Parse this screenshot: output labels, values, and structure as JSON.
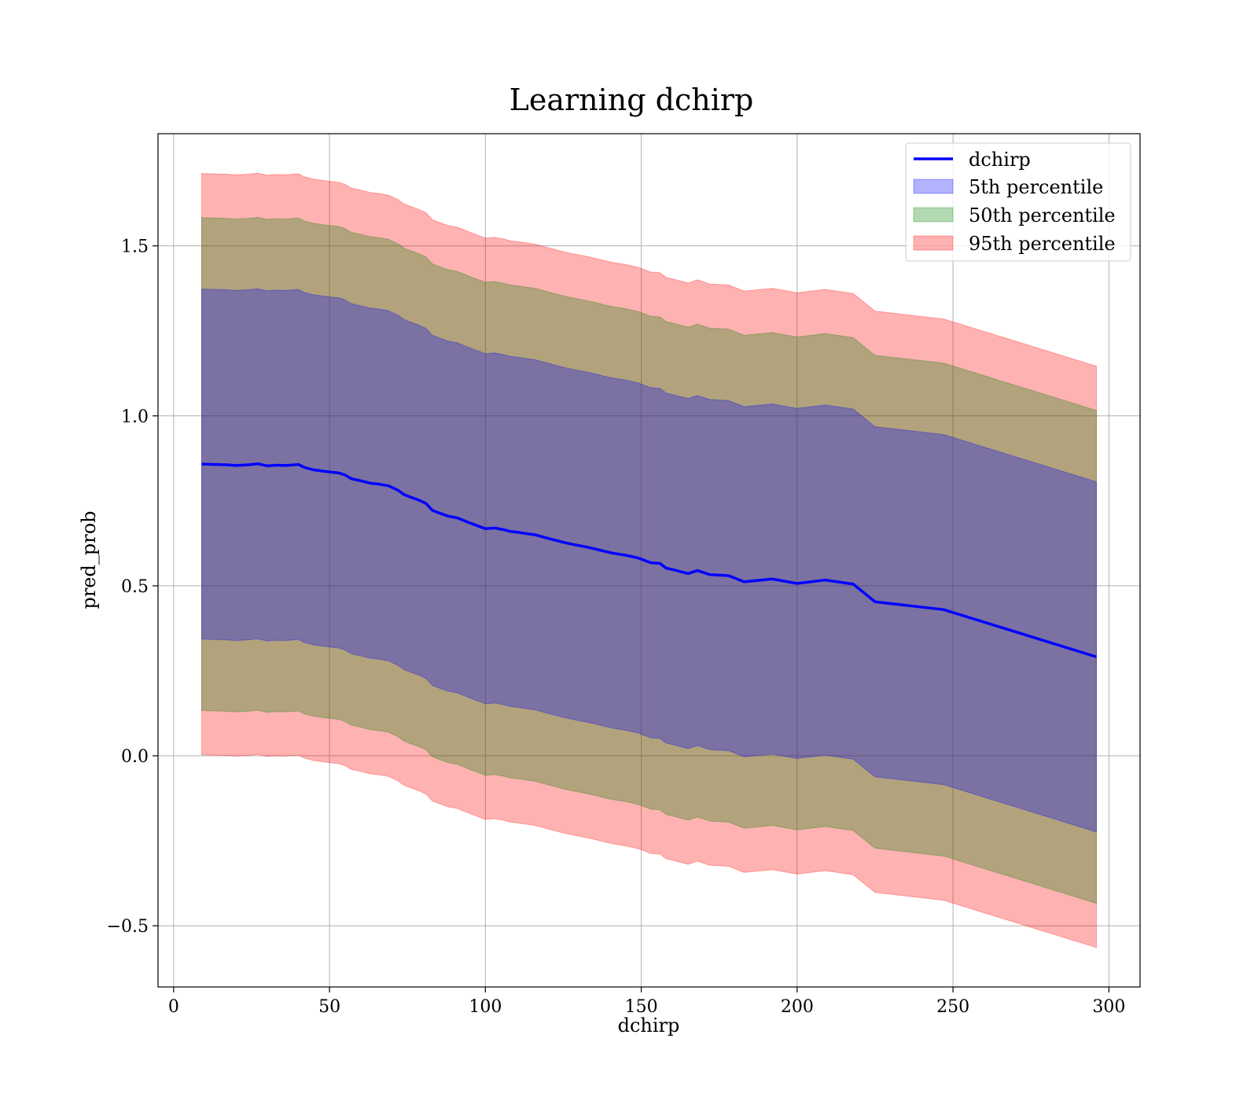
{
  "chart_data": {
    "type": "area",
    "title": "Learning dchirp",
    "xlabel": "dchirp",
    "ylabel": "pred_prob",
    "xlim": [
      -5,
      310
    ],
    "ylim": [
      -0.68,
      1.83
    ],
    "xticks": [
      0,
      50,
      100,
      150,
      200,
      250,
      300
    ],
    "xtick_labels": [
      "0",
      "50",
      "100",
      "150",
      "200",
      "250",
      "300"
    ],
    "yticks": [
      -0.5,
      0.0,
      0.5,
      1.0,
      1.5
    ],
    "ytick_labels": [
      "−0.5",
      "0.0",
      "0.5",
      "1.0",
      "1.5"
    ],
    "grid": true,
    "legend_position": "top-right",
    "colors": {
      "line": "#0000ff",
      "band_5": "#0000ff",
      "band_50": "#008000",
      "band_95": "#ff0000",
      "combined_fill": "#a2727a"
    },
    "x": [
      9,
      17,
      20,
      24,
      27,
      30,
      33,
      36,
      40,
      42,
      45,
      50,
      53,
      55,
      57,
      60,
      63,
      66,
      69,
      72,
      74,
      76,
      79,
      81,
      83,
      85,
      88,
      91,
      95,
      100,
      103,
      106,
      108,
      110,
      113,
      116,
      120,
      125,
      128,
      132,
      135,
      138,
      141,
      145,
      149,
      153,
      156,
      158,
      160,
      165,
      168,
      172,
      178,
      183,
      192,
      200,
      209,
      218,
      225,
      247,
      296
    ],
    "series": [
      {
        "name": "dchirp",
        "kind": "line",
        "values": [
          0.858,
          0.856,
          0.854,
          0.856,
          0.859,
          0.853,
          0.855,
          0.854,
          0.857,
          0.848,
          0.841,
          0.835,
          0.832,
          0.826,
          0.815,
          0.809,
          0.802,
          0.799,
          0.794,
          0.781,
          0.768,
          0.761,
          0.751,
          0.742,
          0.722,
          0.715,
          0.705,
          0.7,
          0.685,
          0.668,
          0.67,
          0.665,
          0.66,
          0.658,
          0.654,
          0.65,
          0.64,
          0.628,
          0.622,
          0.615,
          0.609,
          0.602,
          0.596,
          0.59,
          0.582,
          0.568,
          0.566,
          0.552,
          0.548,
          0.536,
          0.545,
          0.533,
          0.53,
          0.512,
          0.52,
          0.507,
          0.517,
          0.505,
          0.453,
          0.43,
          0.291
        ]
      },
      {
        "name": "5th percentile",
        "kind": "band",
        "lower": [
          0.343,
          0.341,
          0.339,
          0.341,
          0.344,
          0.338,
          0.34,
          0.339,
          0.342,
          0.333,
          0.326,
          0.32,
          0.317,
          0.311,
          0.3,
          0.294,
          0.287,
          0.284,
          0.279,
          0.266,
          0.253,
          0.246,
          0.236,
          0.227,
          0.207,
          0.2,
          0.19,
          0.185,
          0.17,
          0.153,
          0.155,
          0.15,
          0.145,
          0.143,
          0.139,
          0.135,
          0.125,
          0.113,
          0.107,
          0.1,
          0.094,
          0.087,
          0.081,
          0.075,
          0.067,
          0.053,
          0.051,
          0.037,
          0.033,
          0.021,
          0.03,
          0.018,
          0.015,
          -0.003,
          0.005,
          -0.008,
          0.002,
          -0.01,
          -0.062,
          -0.085,
          -0.224
        ],
        "upper": [
          1.373,
          1.371,
          1.369,
          1.371,
          1.374,
          1.368,
          1.37,
          1.369,
          1.372,
          1.363,
          1.356,
          1.35,
          1.347,
          1.341,
          1.33,
          1.324,
          1.317,
          1.314,
          1.309,
          1.296,
          1.283,
          1.276,
          1.266,
          1.257,
          1.237,
          1.23,
          1.22,
          1.215,
          1.2,
          1.183,
          1.185,
          1.18,
          1.175,
          1.173,
          1.169,
          1.165,
          1.155,
          1.143,
          1.137,
          1.13,
          1.124,
          1.117,
          1.111,
          1.105,
          1.097,
          1.083,
          1.081,
          1.067,
          1.063,
          1.051,
          1.06,
          1.048,
          1.045,
          1.027,
          1.035,
          1.022,
          1.032,
          1.02,
          0.968,
          0.945,
          0.806
        ]
      },
      {
        "name": "50th percentile",
        "kind": "band",
        "lower": [
          0.133,
          0.131,
          0.129,
          0.131,
          0.134,
          0.128,
          0.13,
          0.129,
          0.132,
          0.123,
          0.116,
          0.11,
          0.107,
          0.101,
          0.09,
          0.084,
          0.077,
          0.074,
          0.069,
          0.056,
          0.043,
          0.036,
          0.026,
          0.017,
          -0.003,
          -0.01,
          -0.02,
          -0.025,
          -0.04,
          -0.057,
          -0.055,
          -0.06,
          -0.065,
          -0.067,
          -0.071,
          -0.075,
          -0.085,
          -0.097,
          -0.103,
          -0.11,
          -0.116,
          -0.123,
          -0.129,
          -0.135,
          -0.143,
          -0.157,
          -0.159,
          -0.173,
          -0.177,
          -0.189,
          -0.18,
          -0.192,
          -0.195,
          -0.213,
          -0.205,
          -0.218,
          -0.208,
          -0.22,
          -0.272,
          -0.295,
          -0.434
        ],
        "upper": [
          1.583,
          1.581,
          1.579,
          1.581,
          1.584,
          1.578,
          1.58,
          1.579,
          1.582,
          1.573,
          1.566,
          1.56,
          1.557,
          1.551,
          1.54,
          1.534,
          1.527,
          1.524,
          1.519,
          1.506,
          1.493,
          1.486,
          1.476,
          1.467,
          1.447,
          1.44,
          1.43,
          1.425,
          1.41,
          1.393,
          1.395,
          1.39,
          1.385,
          1.383,
          1.379,
          1.375,
          1.365,
          1.353,
          1.347,
          1.34,
          1.334,
          1.327,
          1.321,
          1.315,
          1.307,
          1.293,
          1.291,
          1.277,
          1.273,
          1.261,
          1.27,
          1.258,
          1.255,
          1.237,
          1.245,
          1.232,
          1.242,
          1.23,
          1.178,
          1.155,
          1.016
        ]
      },
      {
        "name": "95th percentile",
        "kind": "band",
        "lower": [
          0.003,
          0.001,
          -0.001,
          0.001,
          0.004,
          -0.002,
          0.0,
          -0.001,
          0.002,
          -0.007,
          -0.014,
          -0.02,
          -0.023,
          -0.029,
          -0.04,
          -0.046,
          -0.053,
          -0.056,
          -0.061,
          -0.074,
          -0.087,
          -0.094,
          -0.104,
          -0.113,
          -0.133,
          -0.14,
          -0.15,
          -0.155,
          -0.17,
          -0.187,
          -0.185,
          -0.19,
          -0.195,
          -0.197,
          -0.201,
          -0.205,
          -0.215,
          -0.227,
          -0.233,
          -0.24,
          -0.246,
          -0.253,
          -0.259,
          -0.265,
          -0.273,
          -0.287,
          -0.289,
          -0.303,
          -0.307,
          -0.319,
          -0.31,
          -0.322,
          -0.325,
          -0.343,
          -0.335,
          -0.348,
          -0.338,
          -0.35,
          -0.402,
          -0.425,
          -0.564
        ],
        "upper": [
          1.713,
          1.711,
          1.709,
          1.711,
          1.714,
          1.708,
          1.71,
          1.709,
          1.712,
          1.703,
          1.696,
          1.69,
          1.687,
          1.681,
          1.67,
          1.664,
          1.657,
          1.654,
          1.649,
          1.636,
          1.623,
          1.616,
          1.606,
          1.597,
          1.577,
          1.57,
          1.56,
          1.555,
          1.54,
          1.523,
          1.525,
          1.52,
          1.515,
          1.513,
          1.509,
          1.505,
          1.495,
          1.483,
          1.477,
          1.47,
          1.464,
          1.457,
          1.451,
          1.445,
          1.437,
          1.423,
          1.421,
          1.407,
          1.403,
          1.391,
          1.4,
          1.388,
          1.385,
          1.367,
          1.375,
          1.362,
          1.372,
          1.36,
          1.308,
          1.285,
          1.146
        ]
      }
    ]
  }
}
